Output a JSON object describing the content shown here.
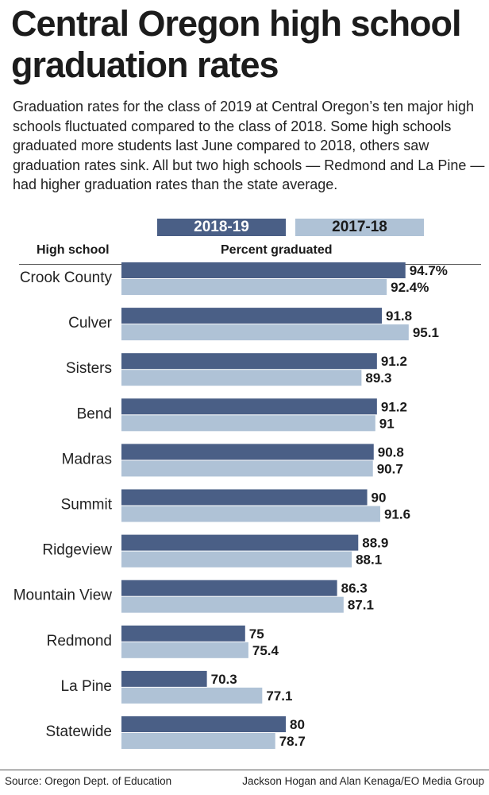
{
  "title": "Central Oregon high school graduation rates",
  "subtitle": "Graduation rates for the class of 2019 at Central Oregon’s ten major high schools fluctuated compared to the class of 2018. Some high schools graduated more students last June compared to 2018, others saw graduation rates sink. All but two high schools — Redmond and La Pine — had higher graduation rates than the state average.",
  "colors": {
    "series_2018_19": "#4a5f86",
    "series_2017_18": "#afc2d6"
  },
  "chart_data": {
    "type": "bar",
    "orientation": "horizontal",
    "xlabel": "Percent graduated",
    "ylabel": "High school",
    "categories": [
      "Crook County",
      "Culver",
      "Sisters",
      "Bend",
      "Madras",
      "Summit",
      "Ridgeview",
      "Mountain View",
      "Redmond",
      "La Pine",
      "Statewide"
    ],
    "series": [
      {
        "name": "2018-19",
        "values": [
          94.7,
          91.8,
          91.2,
          91.2,
          90.8,
          90,
          88.9,
          86.3,
          75,
          70.3,
          80
        ],
        "labels": [
          "94.7%",
          "91.8",
          "91.2",
          "91.2",
          "90.8",
          "90",
          "88.9",
          "86.3",
          "75",
          "70.3",
          "80"
        ]
      },
      {
        "name": "2017-18",
        "values": [
          92.4,
          95.1,
          89.3,
          91,
          90.7,
          91.6,
          88.1,
          87.1,
          75.4,
          77.1,
          78.7
        ],
        "labels": [
          "92.4%",
          "95.1",
          "89.3",
          "91",
          "90.7",
          "91.6",
          "88.1",
          "87.1",
          "75.4",
          "77.1",
          "78.7"
        ]
      }
    ],
    "legend": "top",
    "grid": false
  },
  "footer": {
    "source": "Source: Oregon Dept. of Education",
    "credit": "Jackson Hogan and Alan Kenaga/EO Media Group"
  }
}
